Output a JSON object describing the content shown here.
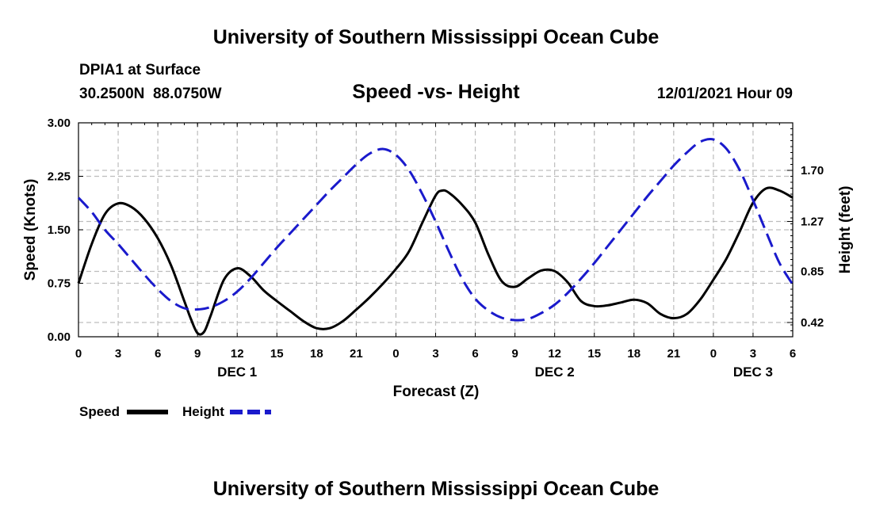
{
  "header": {
    "title": "University of Southern Mississippi Ocean Cube",
    "station": "DPIA1 at Surface",
    "coords": "30.2500N  88.0750W",
    "subtitle": "Speed -vs- Height",
    "datetime": "12/01/2021 Hour 09",
    "footer_title": "University of Southern Mississippi Ocean Cube"
  },
  "chart_data": {
    "type": "line",
    "title": "Speed -vs- Height",
    "xlabel": "Forecast (Z)",
    "ylabel_left": "Speed (Knots)",
    "ylabel_right": "Height (feet)",
    "xlim": [
      0,
      54
    ],
    "ylim_left": [
      0,
      3
    ],
    "ylim_right": [
      0.3,
      2.1
    ],
    "x_ticks": [
      {
        "x": 0,
        "label": "0"
      },
      {
        "x": 3,
        "label": "3"
      },
      {
        "x": 6,
        "label": "6"
      },
      {
        "x": 9,
        "label": "9"
      },
      {
        "x": 12,
        "label": "12"
      },
      {
        "x": 15,
        "label": "15"
      },
      {
        "x": 18,
        "label": "18"
      },
      {
        "x": 21,
        "label": "21"
      },
      {
        "x": 24,
        "label": "0"
      },
      {
        "x": 27,
        "label": "3"
      },
      {
        "x": 30,
        "label": "6"
      },
      {
        "x": 33,
        "label": "9"
      },
      {
        "x": 36,
        "label": "12"
      },
      {
        "x": 39,
        "label": "15"
      },
      {
        "x": 42,
        "label": "18"
      },
      {
        "x": 45,
        "label": "21"
      },
      {
        "x": 48,
        "label": "0"
      },
      {
        "x": 51,
        "label": "3"
      },
      {
        "x": 54,
        "label": "6"
      }
    ],
    "day_labels": [
      {
        "x": 12,
        "label": "DEC 1"
      },
      {
        "x": 36,
        "label": "DEC 2"
      },
      {
        "x": 51,
        "label": "DEC 3"
      }
    ],
    "left_ticks": [
      {
        "value": 0,
        "label": "0.00"
      },
      {
        "value": 0.75,
        "label": "0.75"
      },
      {
        "value": 1.5,
        "label": "1.50"
      },
      {
        "value": 2.25,
        "label": "2.25"
      },
      {
        "value": 3,
        "label": "3.00"
      }
    ],
    "right_ticks": [
      {
        "value": 0.42,
        "label": "0.42"
      },
      {
        "value": 0.85,
        "label": "0.85"
      },
      {
        "value": 1.27,
        "label": "1.27"
      },
      {
        "value": 1.7,
        "label": "1.70"
      }
    ],
    "series": [
      {
        "name": "Speed",
        "axis": "left",
        "color": "#000000",
        "dash": "solid",
        "x": [
          0,
          1,
          2,
          3,
          4,
          5,
          6,
          7,
          8,
          8.5,
          9,
          9.5,
          10,
          11,
          12,
          13,
          14,
          15,
          16,
          17,
          18,
          19,
          20,
          21,
          22,
          23,
          24,
          25,
          26,
          27,
          27.5,
          28,
          29,
          30,
          31,
          32,
          33,
          34,
          35,
          36,
          37,
          38,
          39,
          40,
          41,
          42,
          43,
          44,
          45,
          46,
          47,
          48,
          49,
          50,
          51,
          52,
          53,
          54
        ],
        "values": [
          0.75,
          1.3,
          1.72,
          1.87,
          1.82,
          1.65,
          1.38,
          1.0,
          0.5,
          0.25,
          0.05,
          0.07,
          0.3,
          0.8,
          0.96,
          0.85,
          0.65,
          0.5,
          0.36,
          0.22,
          0.12,
          0.12,
          0.22,
          0.38,
          0.55,
          0.74,
          0.95,
          1.2,
          1.6,
          1.98,
          2.05,
          2.02,
          1.85,
          1.6,
          1.15,
          0.78,
          0.7,
          0.82,
          0.93,
          0.92,
          0.76,
          0.5,
          0.43,
          0.44,
          0.48,
          0.52,
          0.47,
          0.32,
          0.26,
          0.32,
          0.52,
          0.8,
          1.1,
          1.48,
          1.88,
          2.08,
          2.05,
          1.95
        ]
      },
      {
        "name": "Height",
        "axis": "right",
        "color": "#1a1acc",
        "dash": "dashed",
        "x": [
          0,
          1,
          2,
          3,
          4,
          5,
          6,
          7,
          8,
          9,
          10,
          11,
          12,
          13,
          14,
          15,
          16,
          17,
          18,
          19,
          20,
          21,
          22,
          23,
          24,
          25,
          26,
          27,
          28,
          29,
          30,
          31,
          32,
          33,
          34,
          35,
          36,
          37,
          38,
          39,
          40,
          41,
          42,
          43,
          44,
          45,
          46,
          47,
          48,
          49,
          50,
          51,
          52,
          53,
          54
        ],
        "values": [
          1.47,
          1.35,
          1.2,
          1.08,
          0.95,
          0.82,
          0.7,
          0.6,
          0.54,
          0.53,
          0.55,
          0.6,
          0.68,
          0.79,
          0.92,
          1.05,
          1.17,
          1.29,
          1.41,
          1.53,
          1.64,
          1.75,
          1.84,
          1.88,
          1.83,
          1.7,
          1.5,
          1.27,
          1.02,
          0.79,
          0.62,
          0.52,
          0.46,
          0.44,
          0.45,
          0.5,
          0.57,
          0.67,
          0.79,
          0.92,
          1.06,
          1.2,
          1.34,
          1.48,
          1.61,
          1.74,
          1.85,
          1.94,
          1.96,
          1.88,
          1.7,
          1.45,
          1.18,
          0.92,
          0.74
        ]
      }
    ],
    "legend": [
      {
        "label": "Speed",
        "color": "#000000",
        "dash": "solid"
      },
      {
        "label": "Height",
        "color": "#1a1acc",
        "dash": "dashed"
      }
    ],
    "grid": true,
    "legend_position": "bottom-left"
  }
}
